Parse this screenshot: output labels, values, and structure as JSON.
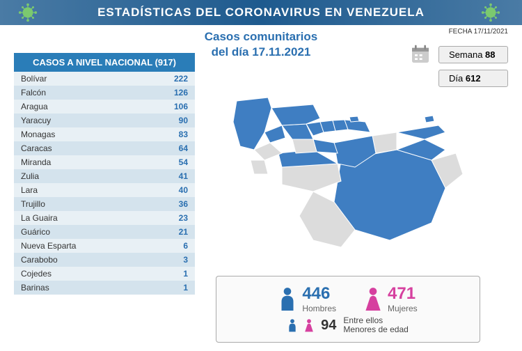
{
  "header": {
    "title": "ESTADÍSTICAS DEL CORONAVIRUS EN VENEZUELA"
  },
  "date_label": "FECHA 17/11/2021",
  "subtitle_line1": "Casos comunitarios",
  "subtitle_line2": "del día 17.11.2021",
  "week_panel": {
    "label": "Semana",
    "value": "88"
  },
  "day_panel": {
    "label": "Día",
    "value": "612"
  },
  "table": {
    "header": "CASOS A NIVEL NACIONAL  (917)",
    "rows": [
      {
        "name": "Bolívar",
        "value": 222
      },
      {
        "name": "Falcón",
        "value": 126
      },
      {
        "name": "Aragua",
        "value": 106
      },
      {
        "name": "Yaracuy",
        "value": 90
      },
      {
        "name": "Monagas",
        "value": 83
      },
      {
        "name": "Caracas",
        "value": 64
      },
      {
        "name": "Miranda",
        "value": 54
      },
      {
        "name": "Zulia",
        "value": 41
      },
      {
        "name": "Lara",
        "value": 40
      },
      {
        "name": "Trujillo",
        "value": 36
      },
      {
        "name": "La Guaira",
        "value": 23
      },
      {
        "name": "Guárico",
        "value": 21
      },
      {
        "name": "Nueva Esparta",
        "value": 6
      },
      {
        "name": "Carabobo",
        "value": 3
      },
      {
        "name": "Cojedes",
        "value": 1
      },
      {
        "name": "Barinas",
        "value": 1
      }
    ],
    "odd_bg": "#e8f0f5",
    "even_bg": "#d4e3ed",
    "header_bg": "#2a7db8",
    "value_color": "#2a6fb0"
  },
  "demographics": {
    "men_count": "446",
    "men_label": "Hombres",
    "men_color": "#2a6fb0",
    "women_count": "471",
    "women_label": "Mujeres",
    "women_color": "#d6409f",
    "minors_count": "94",
    "minors_line1": "Entre ellos",
    "minors_line2": "Menores de edad"
  },
  "map": {
    "highlight_color": "#3f7ec2",
    "muted_color": "#dcdcdc",
    "stroke": "#ffffff"
  }
}
